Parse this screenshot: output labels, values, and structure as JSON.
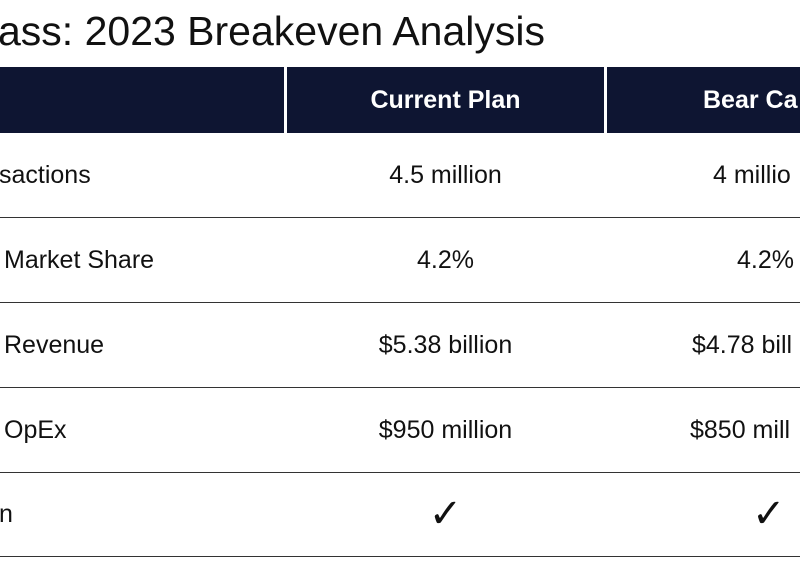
{
  "title": "ass: 2023 Breakeven Analysis",
  "table": {
    "header": [
      "Current Plan",
      "Bear Ca"
    ],
    "rows": [
      [
        "sactions",
        "4.5 million",
        "4 millio"
      ],
      [
        "Market Share",
        "4.2%",
        "4.2%"
      ],
      [
        "Revenue",
        "$5.38 billion",
        "$4.78 bill"
      ],
      [
        "OpEx",
        "$950 million",
        "$850 mill"
      ],
      [
        "n",
        "✓",
        "✓"
      ]
    ]
  }
}
